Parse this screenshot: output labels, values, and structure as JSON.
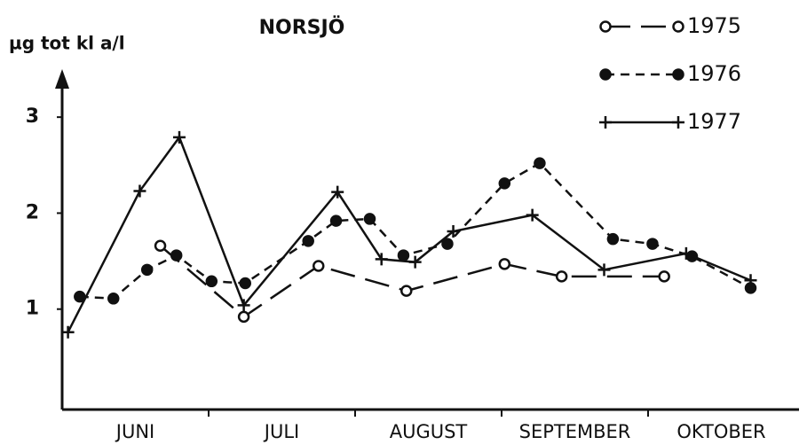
{
  "chart_data": {
    "type": "line",
    "title": "NORSJÖ",
    "y_label": "µg tot kl a/l",
    "xlim": [
      6,
      11
    ],
    "ylim": [
      0,
      3.5
    ],
    "yticks": [
      1,
      2,
      3
    ],
    "xticks": [
      {
        "value": 6.5,
        "label": "JUNI"
      },
      {
        "value": 7.5,
        "label": "JULI"
      },
      {
        "value": 8.5,
        "label": "AUGUST"
      },
      {
        "value": 9.5,
        "label": "SEPTEMBER"
      },
      {
        "value": 10.5,
        "label": "OKTOBER"
      }
    ],
    "series": [
      {
        "name": "1975",
        "color": "#111",
        "marker": "open-circle",
        "dash": "28 12",
        "x": [
          6.67,
          7.24,
          7.75,
          8.35,
          9.02,
          9.41,
          10.11
        ],
        "values": [
          1.66,
          0.92,
          1.45,
          1.19,
          1.47,
          1.34,
          1.34
        ]
      },
      {
        "name": "1976",
        "color": "#111",
        "marker": "filled-circle",
        "dash": "10 7",
        "x": [
          6.12,
          6.35,
          6.58,
          6.78,
          7.02,
          7.25,
          7.68,
          7.87,
          8.1,
          8.33,
          8.63,
          9.02,
          9.26,
          9.76,
          10.03,
          10.3,
          10.7
        ],
        "values": [
          1.13,
          1.11,
          1.41,
          1.56,
          1.29,
          1.27,
          1.71,
          1.92,
          1.94,
          1.56,
          1.68,
          2.31,
          2.52,
          1.73,
          1.68,
          1.55,
          1.22
        ]
      },
      {
        "name": "1977",
        "color": "#111",
        "marker": "plus",
        "dash": "none",
        "x": [
          6.04,
          6.53,
          6.8,
          7.24,
          7.88,
          8.18,
          8.41,
          8.67,
          9.21,
          9.7,
          10.26,
          10.7
        ],
        "values": [
          0.76,
          2.23,
          2.79,
          1.04,
          2.22,
          1.52,
          1.49,
          1.81,
          1.98,
          1.41,
          1.58,
          1.3
        ]
      }
    ]
  }
}
